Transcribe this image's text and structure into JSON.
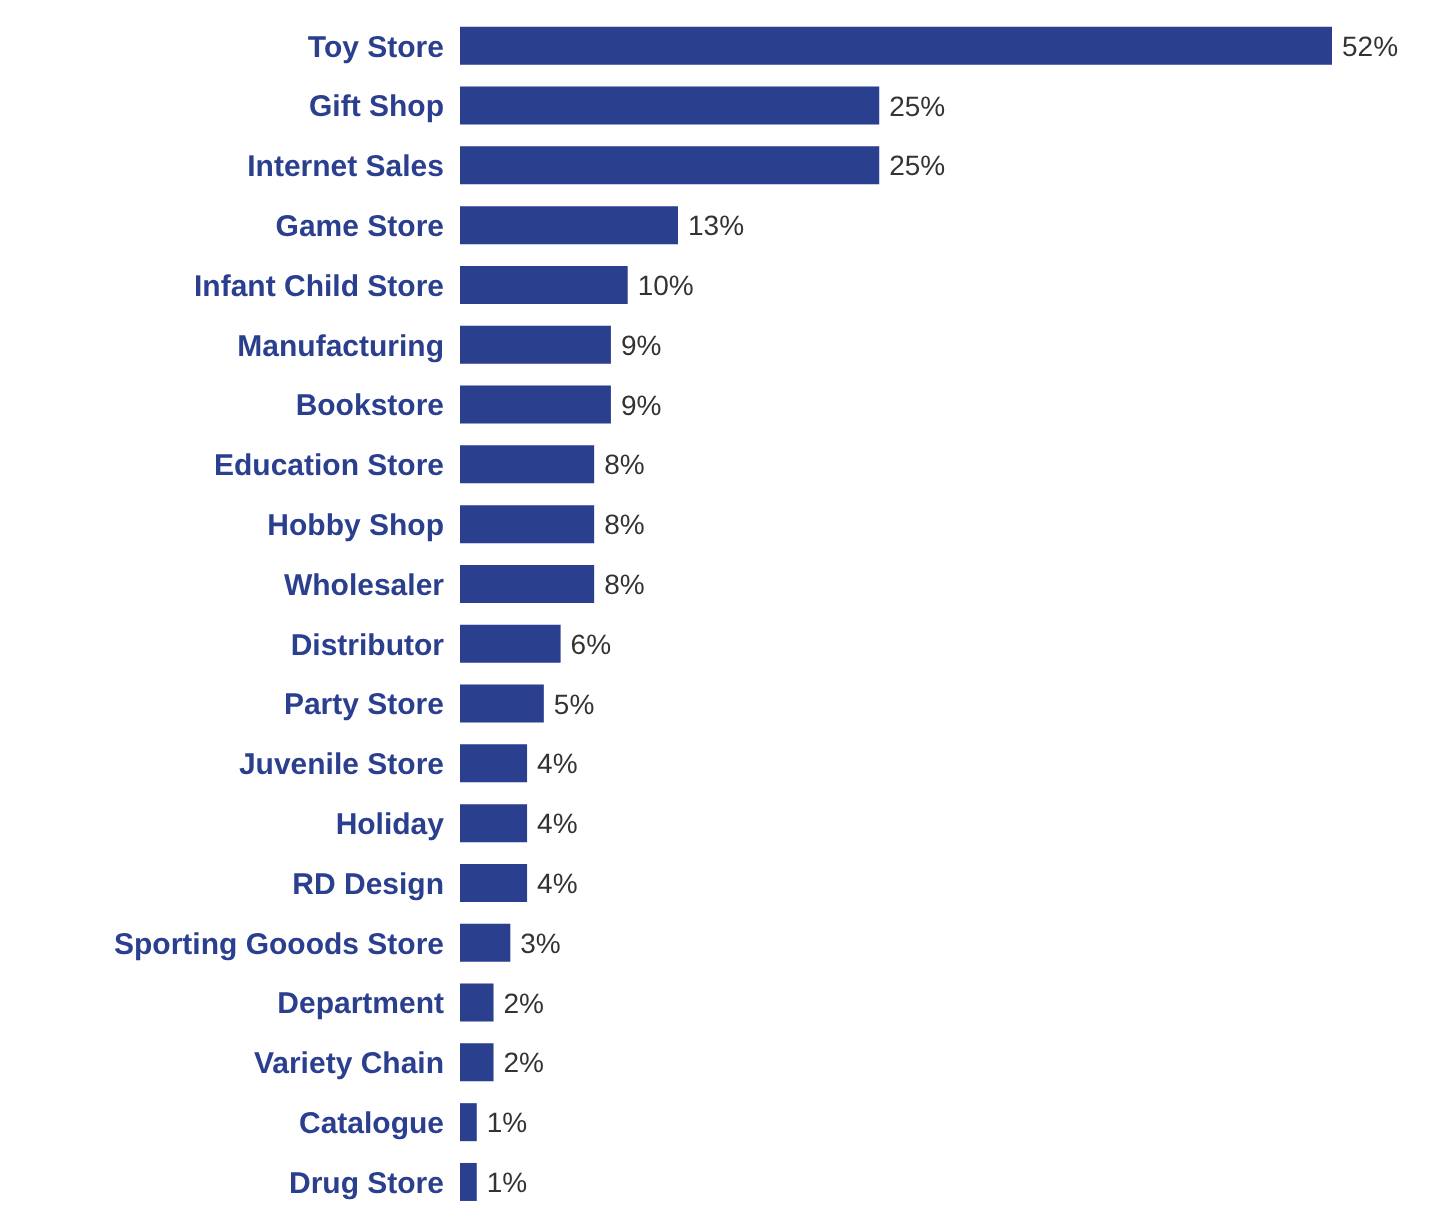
{
  "chart_data": {
    "type": "bar",
    "orientation": "horizontal",
    "categories": [
      "Toy Store",
      "Gift Shop",
      "Internet Sales",
      "Game Store",
      "Infant Child Store",
      "Manufacturing",
      "Bookstore",
      "Education Store",
      "Hobby Shop",
      "Wholesaler",
      "Distributor",
      "Party Store",
      "Juvenile Store",
      "Holiday",
      "RD Design",
      "Sporting Gooods Store",
      "Department",
      "Variety Chain",
      "Catalogue",
      "Drug Store"
    ],
    "values": [
      52,
      25,
      25,
      13,
      10,
      9,
      9,
      8,
      8,
      8,
      6,
      5,
      4,
      4,
      4,
      3,
      2,
      2,
      1,
      1
    ],
    "value_labels": [
      "52%",
      "25%",
      "25%",
      "13%",
      "10%",
      "9%",
      "9%",
      "8%",
      "8%",
      "8%",
      "6%",
      "5%",
      "4%",
      "4%",
      "4%",
      "3%",
      "2%",
      "2%",
      "1%",
      "1%"
    ],
    "color": "#2b3f8f",
    "grid": false,
    "legend": false
  }
}
